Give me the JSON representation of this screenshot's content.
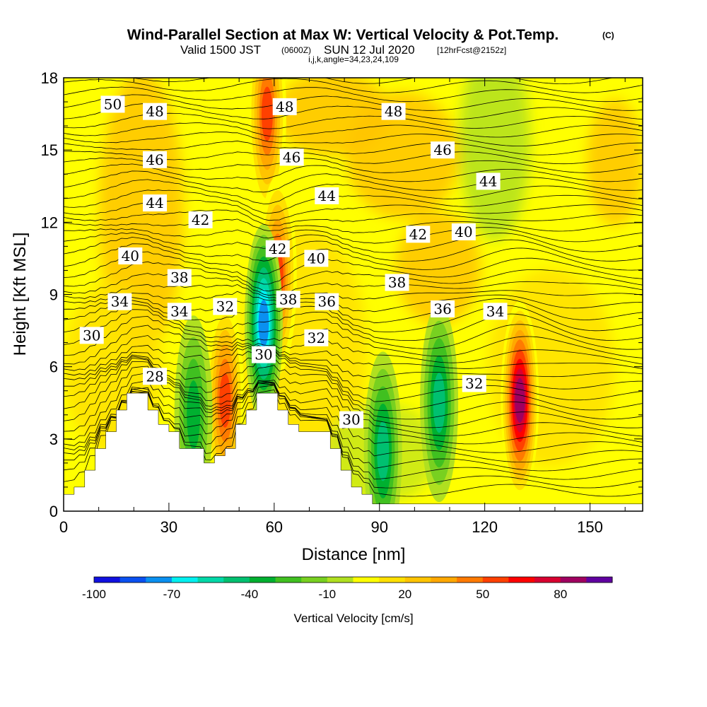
{
  "header": {
    "title": "Wind-Parallel Section at Max W: Vertical Velocity & Pot.Temp.",
    "copyright": "(C)",
    "valid_prefix": "Valid 1500 JST",
    "valid_utc": "(0600Z)",
    "valid_date": "SUN 12 Jul 2020",
    "forecast": "[12hrFcst@2152z]",
    "indices": "i,j,k,angle=34,23,24,109"
  },
  "chart_data": {
    "type": "heatmap",
    "title": "Wind-Parallel Section at Max W: Vertical Velocity & Pot.Temp.",
    "xlabel": "Distance [nm]",
    "ylabel": "Height [Kft MSL]",
    "xlim": [
      0,
      165
    ],
    "ylim": [
      0,
      18
    ],
    "x_ticks": [
      "0",
      "30",
      "60",
      "90",
      "120",
      "150"
    ],
    "x_tick_values": [
      0,
      30,
      60,
      90,
      120,
      150
    ],
    "y_ticks": [
      "0",
      "3",
      "6",
      "9",
      "12",
      "15",
      "18"
    ],
    "y_tick_values": [
      0,
      3,
      6,
      9,
      12,
      15,
      18
    ],
    "colorbar": {
      "label": "Vertical Velocity [cm/s]",
      "tick_labels": [
        "-100",
        "-70",
        "-40",
        "-10",
        "20",
        "50",
        "80"
      ],
      "tick_values": [
        -100,
        -70,
        -40,
        -10,
        20,
        50,
        80
      ],
      "levels": [
        -100,
        -90,
        -80,
        -70,
        -60,
        -50,
        -40,
        -30,
        -20,
        -10,
        0,
        10,
        20,
        30,
        40,
        50,
        60,
        70,
        80,
        90
      ],
      "colors": [
        "#1010e0",
        "#0a50f0",
        "#0a90f0",
        "#00f0f0",
        "#00d8a8",
        "#00c070",
        "#00b030",
        "#40c020",
        "#78d020",
        "#b0e020",
        "#ffff00",
        "#ffe000",
        "#ffc400",
        "#ffa800",
        "#ff7a00",
        "#ff4000",
        "#ff0000",
        "#d80030",
        "#a00060",
        "#6000a0"
      ]
    },
    "theta_contour_labels": [
      {
        "label": "50",
        "x": 14,
        "y": 16.9
      },
      {
        "label": "48",
        "x": 26,
        "y": 16.6
      },
      {
        "label": "48",
        "x": 63,
        "y": 16.8
      },
      {
        "label": "48",
        "x": 94,
        "y": 16.6
      },
      {
        "label": "46",
        "x": 26,
        "y": 14.6
      },
      {
        "label": "46",
        "x": 65,
        "y": 14.7
      },
      {
        "label": "46",
        "x": 108,
        "y": 15.0
      },
      {
        "label": "44",
        "x": 26,
        "y": 12.8
      },
      {
        "label": "44",
        "x": 75,
        "y": 13.1
      },
      {
        "label": "44",
        "x": 121,
        "y": 13.7
      },
      {
        "label": "42",
        "x": 39,
        "y": 12.1
      },
      {
        "label": "42",
        "x": 61,
        "y": 10.9
      },
      {
        "label": "42",
        "x": 101,
        "y": 11.5
      },
      {
        "label": "40",
        "x": 19,
        "y": 10.6
      },
      {
        "label": "40",
        "x": 72,
        "y": 10.5
      },
      {
        "label": "40",
        "x": 114,
        "y": 11.6
      },
      {
        "label": "38",
        "x": 33,
        "y": 9.7
      },
      {
        "label": "38",
        "x": 64,
        "y": 8.8
      },
      {
        "label": "38",
        "x": 95,
        "y": 9.5
      },
      {
        "label": "36",
        "x": 75,
        "y": 8.7
      },
      {
        "label": "36",
        "x": 108,
        "y": 8.4
      },
      {
        "label": "34",
        "x": 16,
        "y": 8.7
      },
      {
        "label": "34",
        "x": 33,
        "y": 8.3
      },
      {
        "label": "34",
        "x": 123,
        "y": 8.3
      },
      {
        "label": "32",
        "x": 46,
        "y": 8.5
      },
      {
        "label": "32",
        "x": 72,
        "y": 7.2
      },
      {
        "label": "32",
        "x": 117,
        "y": 5.3
      },
      {
        "label": "30",
        "x": 8,
        "y": 7.3
      },
      {
        "label": "30",
        "x": 57,
        "y": 6.5
      },
      {
        "label": "30",
        "x": 82,
        "y": 3.8
      },
      {
        "label": "28",
        "x": 26,
        "y": 5.6
      }
    ],
    "vertical_velocity_features": [
      {
        "kind": "updraft",
        "x": 130,
        "y": 4.6,
        "peak_cm_s": 85
      },
      {
        "kind": "updraft",
        "x": 58,
        "y": 16.5,
        "peak_cm_s": 55
      },
      {
        "kind": "updraft",
        "x": 46,
        "y": 4.6,
        "peak_cm_s": 55
      },
      {
        "kind": "updraft",
        "x": 61,
        "y": 9.8,
        "peak_cm_s": 50
      },
      {
        "kind": "downdraft",
        "x": 57,
        "y": 7.8,
        "peak_cm_s": -75
      },
      {
        "kind": "downdraft",
        "x": 91,
        "y": 2.5,
        "peak_cm_s": -40
      },
      {
        "kind": "downdraft",
        "x": 107,
        "y": 4.5,
        "peak_cm_s": -40
      },
      {
        "kind": "downdraft",
        "x": 37,
        "y": 4.0,
        "peak_cm_s": -35
      }
    ],
    "terrain_kft": [
      [
        0,
        0.7
      ],
      [
        3,
        0.7
      ],
      [
        3,
        1.0
      ],
      [
        6,
        1.0
      ],
      [
        6,
        1.7
      ],
      [
        9,
        1.7
      ],
      [
        9,
        2.6
      ],
      [
        12,
        2.6
      ],
      [
        12,
        3.3
      ],
      [
        15,
        3.3
      ],
      [
        15,
        4.2
      ],
      [
        18,
        4.2
      ],
      [
        18,
        4.9
      ],
      [
        24,
        4.9
      ],
      [
        24,
        4.2
      ],
      [
        27,
        4.2
      ],
      [
        27,
        3.6
      ],
      [
        30,
        3.6
      ],
      [
        30,
        3.3
      ],
      [
        33,
        3.3
      ],
      [
        33,
        2.6
      ],
      [
        40,
        2.6
      ],
      [
        40,
        2.0
      ],
      [
        43,
        2.0
      ],
      [
        43,
        2.3
      ],
      [
        46,
        2.3
      ],
      [
        46,
        2.6
      ],
      [
        49,
        2.6
      ],
      [
        49,
        3.6
      ],
      [
        52,
        3.6
      ],
      [
        52,
        4.2
      ],
      [
        55,
        4.2
      ],
      [
        55,
        4.9
      ],
      [
        61,
        4.9
      ],
      [
        61,
        4.2
      ],
      [
        64,
        4.2
      ],
      [
        64,
        3.6
      ],
      [
        67,
        3.6
      ],
      [
        67,
        3.3
      ],
      [
        76,
        3.3
      ],
      [
        76,
        2.6
      ],
      [
        79,
        2.6
      ],
      [
        79,
        1.7
      ],
      [
        82,
        1.7
      ],
      [
        82,
        1.0
      ],
      [
        85,
        1.0
      ],
      [
        85,
        0.7
      ],
      [
        88,
        0.7
      ],
      [
        88,
        0.3
      ],
      [
        165,
        0.3
      ]
    ]
  }
}
